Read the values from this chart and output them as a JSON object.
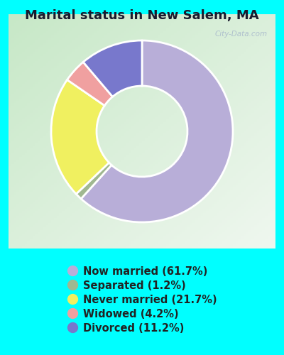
{
  "title": "Marital status in New Salem, MA",
  "title_fontsize": 13,
  "title_fontweight": "bold",
  "title_color": "#1a1a2e",
  "slices": [
    {
      "label": "Now married (61.7%)",
      "value": 61.7,
      "color": "#b8aed8"
    },
    {
      "label": "Separated (1.2%)",
      "value": 1.2,
      "color": "#a0b890"
    },
    {
      "label": "Never married (21.7%)",
      "value": 21.7,
      "color": "#f0f060"
    },
    {
      "label": "Widowed (4.2%)",
      "value": 4.2,
      "color": "#f0a0a0"
    },
    {
      "label": "Divorced (11.2%)",
      "value": 11.2,
      "color": "#7878cc"
    }
  ],
  "outer_bg": "#00ffff",
  "chart_bg_color": "#d8eed8",
  "legend_text_color": "#222222",
  "legend_fontsize": 10.5,
  "watermark": "City-Data.com",
  "startangle": 90,
  "donut_width": 0.5
}
